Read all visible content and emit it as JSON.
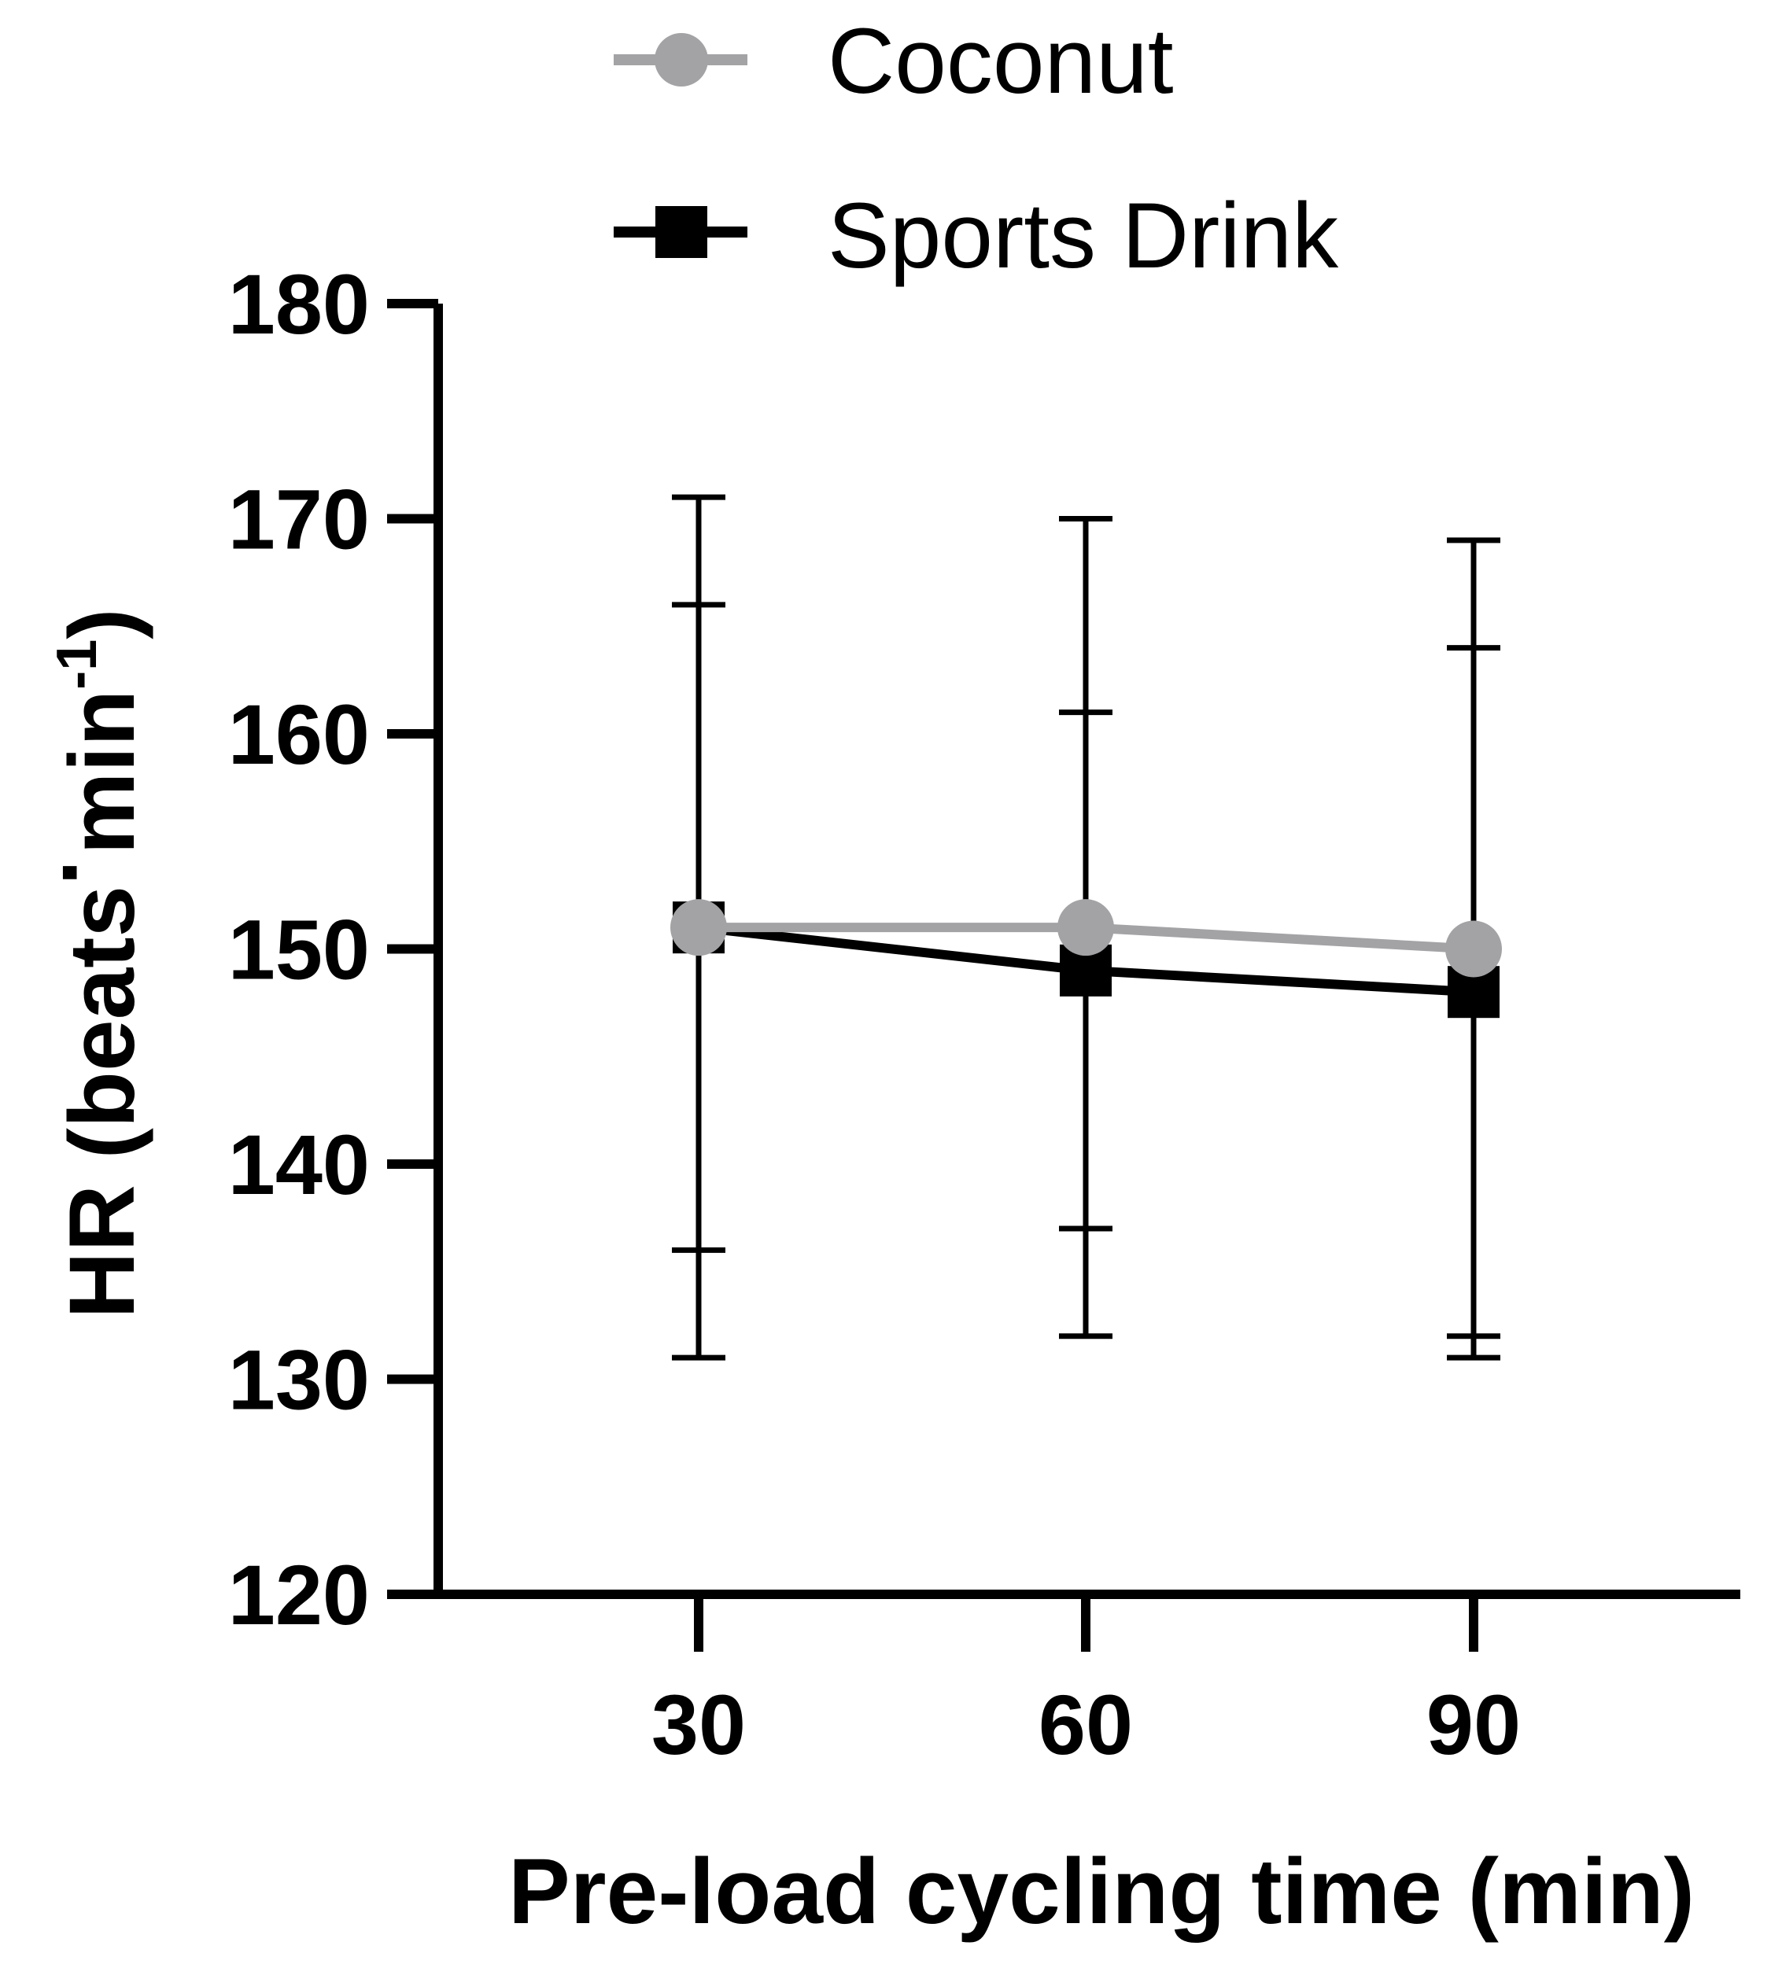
{
  "chart_data": {
    "type": "line",
    "x": [
      30,
      60,
      90
    ],
    "xlabel": "Pre-load cycling time (min)",
    "ylabel_main": "HR (beats",
    "ylabel_dot": "·",
    "ylabel_unit": "min",
    "ylabel_sup": "-1",
    "ylabel_close": ")",
    "ylim": [
      120,
      180
    ],
    "yticks": [
      120,
      130,
      140,
      150,
      160,
      170,
      180
    ],
    "xticks": [
      30,
      60,
      90
    ],
    "grid": false,
    "legend_position": "top",
    "series": [
      {
        "name": "Coconut",
        "marker": "circle",
        "color": "#a3a3a6",
        "values": [
          151,
          151,
          150
        ],
        "error_low": [
          131,
          132,
          131
        ],
        "error_high": [
          171,
          170,
          169
        ]
      },
      {
        "name": "Sports Drink",
        "marker": "square",
        "color": "#000000",
        "values": [
          151,
          149,
          148
        ],
        "error_low": [
          136,
          137,
          132
        ],
        "error_high": [
          166,
          161,
          164
        ]
      }
    ]
  }
}
